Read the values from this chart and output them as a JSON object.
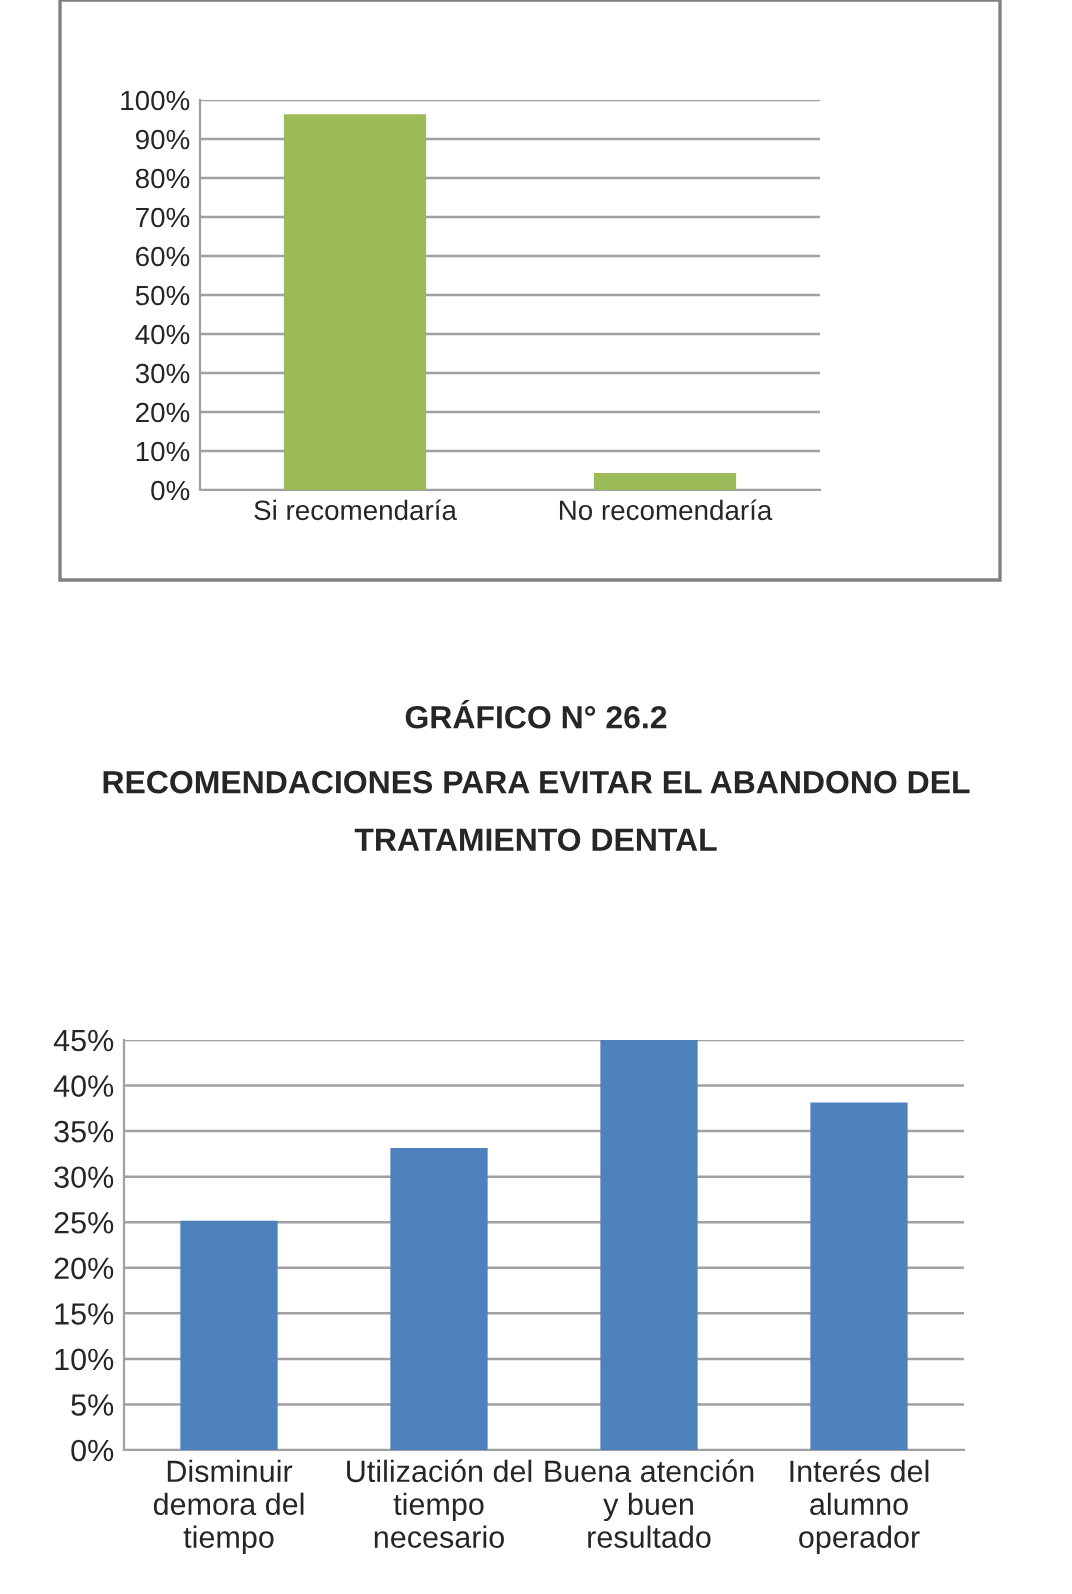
{
  "chart_data": [
    {
      "type": "bar",
      "categories": [
        "Si recomendaría",
        "No recomendaría"
      ],
      "values": [
        96,
        4
      ],
      "color": "#9bbb59",
      "ylim": [
        0,
        100
      ],
      "yticks": [
        {
          "value": 0,
          "label": "0%"
        },
        {
          "value": 10,
          "label": "10%"
        },
        {
          "value": 20,
          "label": "20%"
        },
        {
          "value": 30,
          "label": "30%"
        },
        {
          "value": 40,
          "label": "40%"
        },
        {
          "value": 50,
          "label": "50%"
        },
        {
          "value": 60,
          "label": "60%"
        },
        {
          "value": 70,
          "label": "70%"
        },
        {
          "value": 80,
          "label": "80%"
        },
        {
          "value": 90,
          "label": "90%"
        },
        {
          "value": 100,
          "label": "100%"
        }
      ],
      "grid": "y",
      "legend": false
    },
    {
      "type": "bar",
      "title": "GRÁFICO N° 26.2",
      "subtitle": "RECOMENDACIONES PARA EVITAR EL ABANDONO DEL TRATAMIENTO DENTAL",
      "categories": [
        "Disminuir\ndemora del\ntiempo",
        "Utilización del\ntiempo\nnecesario",
        "Buena atención\ny buen\nresultado",
        "Interés del\nalumno\noperador"
      ],
      "values": [
        25,
        33,
        45,
        38
      ],
      "color": "#4f81bd",
      "ylim": [
        0,
        45
      ],
      "yticks": [
        {
          "value": 0,
          "label": "0%"
        },
        {
          "value": 5,
          "label": "5%"
        },
        {
          "value": 10,
          "label": "10%"
        },
        {
          "value": 15,
          "label": "15%"
        },
        {
          "value": 20,
          "label": "20%"
        },
        {
          "value": 25,
          "label": "25%"
        },
        {
          "value": 30,
          "label": "30%"
        },
        {
          "value": 35,
          "label": "35%"
        },
        {
          "value": 40,
          "label": "40%"
        },
        {
          "value": 45,
          "label": "45%"
        }
      ],
      "grid": "y",
      "legend": false
    }
  ]
}
